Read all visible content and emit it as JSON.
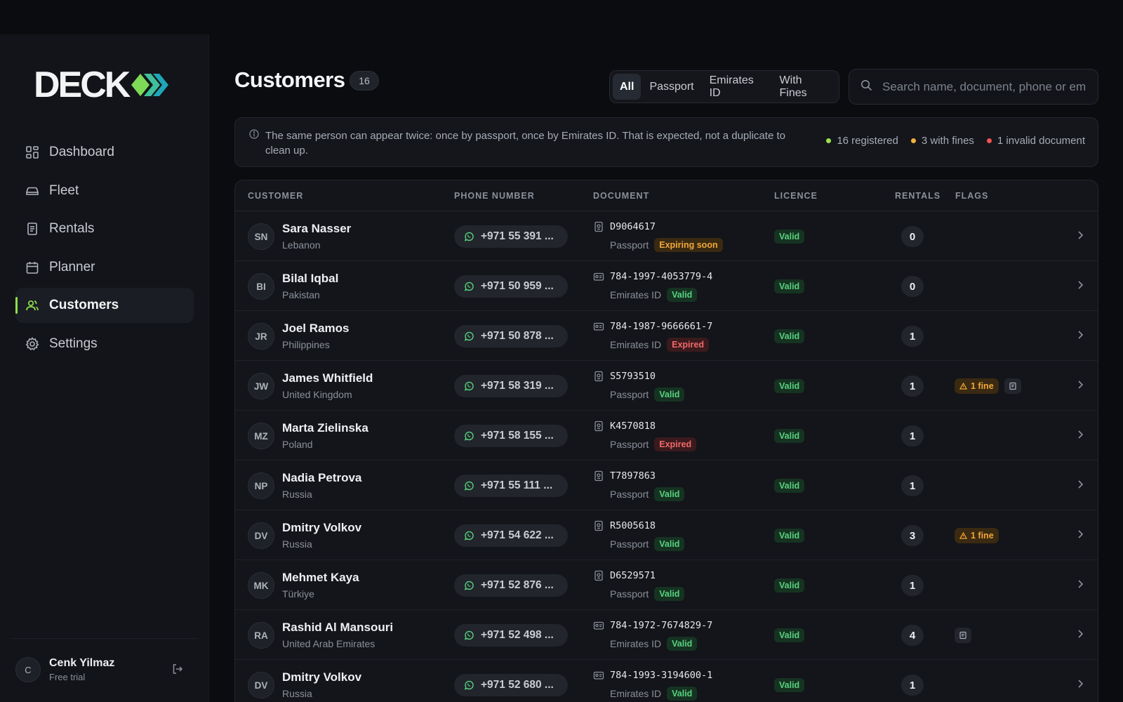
{
  "app": {
    "logo_text": "DECK"
  },
  "nav": {
    "items": [
      {
        "label": "Dashboard",
        "icon": "dashboard-icon",
        "active": false
      },
      {
        "label": "Fleet",
        "icon": "car-icon",
        "active": false
      },
      {
        "label": "Rentals",
        "icon": "receipt-icon",
        "active": false
      },
      {
        "label": "Planner",
        "icon": "calendar-icon",
        "active": false
      },
      {
        "label": "Customers",
        "icon": "users-icon",
        "active": true
      },
      {
        "label": "Settings",
        "icon": "gear-icon",
        "active": false
      }
    ]
  },
  "user": {
    "initial": "C",
    "name": "Cenk Yilmaz",
    "plan": "Free trial"
  },
  "header": {
    "title": "Customers",
    "count": "16",
    "filters": [
      {
        "label": "All",
        "active": true
      },
      {
        "label": "Passport",
        "active": false
      },
      {
        "label": "Emirates ID",
        "active": false
      },
      {
        "label": "With Fines",
        "active": false
      }
    ],
    "search_placeholder": "Search name, document, phone or email"
  },
  "banner": {
    "text": "The same person can appear twice: once by passport, once by Emirates ID. That is expected, not a duplicate to clean up.",
    "stats": [
      {
        "label": "16 registered",
        "color": "#9be24a"
      },
      {
        "label": "3 with fines",
        "color": "#f1b33a"
      },
      {
        "label": "1 invalid document",
        "color": "#ef5350"
      }
    ]
  },
  "colors": {
    "accent": "#8ee04a",
    "valid": "#58d27e",
    "expired": "#f06a6a",
    "warning": "#f1a73a"
  },
  "table": {
    "columns": [
      "CUSTOMER",
      "PHONE NUMBER",
      "DOCUMENT",
      "LICENCE",
      "RENTALS",
      "FLAGS"
    ],
    "rows": [
      {
        "initials": "SN",
        "name": "Sara Nasser",
        "country": "Lebanon",
        "phone": "+971 55 391 ...",
        "doc_kind": "passport",
        "doc_number": "D9064617",
        "doc_type": "Passport",
        "doc_status": "Expiring soon",
        "doc_status_kind": "soon",
        "licence": "Valid",
        "rentals": "0",
        "fine": "",
        "note": false
      },
      {
        "initials": "BI",
        "name": "Bilal Iqbal",
        "country": "Pakistan",
        "phone": "+971 50 959 ...",
        "doc_kind": "id",
        "doc_number": "784-1997-4053779-4",
        "doc_type": "Emirates ID",
        "doc_status": "Valid",
        "doc_status_kind": "valid",
        "licence": "Valid",
        "rentals": "0",
        "fine": "",
        "note": false
      },
      {
        "initials": "JR",
        "name": "Joel Ramos",
        "country": "Philippines",
        "phone": "+971 50 878 ...",
        "doc_kind": "id",
        "doc_number": "784-1987-9666661-7",
        "doc_type": "Emirates ID",
        "doc_status": "Expired",
        "doc_status_kind": "expired",
        "licence": "Valid",
        "rentals": "1",
        "fine": "",
        "note": false
      },
      {
        "initials": "JW",
        "name": "James Whitfield",
        "country": "United Kingdom",
        "phone": "+971 58 319 ...",
        "doc_kind": "passport",
        "doc_number": "S5793510",
        "doc_type": "Passport",
        "doc_status": "Valid",
        "doc_status_kind": "valid",
        "licence": "Valid",
        "rentals": "1",
        "fine": "1 fine",
        "note": true
      },
      {
        "initials": "MZ",
        "name": "Marta Zielinska",
        "country": "Poland",
        "phone": "+971 58 155 ...",
        "doc_kind": "passport",
        "doc_number": "K4570818",
        "doc_type": "Passport",
        "doc_status": "Expired",
        "doc_status_kind": "expired",
        "licence": "Valid",
        "rentals": "1",
        "fine": "",
        "note": false
      },
      {
        "initials": "NP",
        "name": "Nadia Petrova",
        "country": "Russia",
        "phone": "+971 55 111 ...",
        "doc_kind": "passport",
        "doc_number": "T7897863",
        "doc_type": "Passport",
        "doc_status": "Valid",
        "doc_status_kind": "valid",
        "licence": "Valid",
        "rentals": "1",
        "fine": "",
        "note": false
      },
      {
        "initials": "DV",
        "name": "Dmitry Volkov",
        "country": "Russia",
        "phone": "+971 54 622 ...",
        "doc_kind": "passport",
        "doc_number": "R5005618",
        "doc_type": "Passport",
        "doc_status": "Valid",
        "doc_status_kind": "valid",
        "licence": "Valid",
        "rentals": "3",
        "fine": "1 fine",
        "note": false
      },
      {
        "initials": "MK",
        "name": "Mehmet Kaya",
        "country": "Türkiye",
        "phone": "+971 52 876 ...",
        "doc_kind": "passport",
        "doc_number": "D6529571",
        "doc_type": "Passport",
        "doc_status": "Valid",
        "doc_status_kind": "valid",
        "licence": "Valid",
        "rentals": "1",
        "fine": "",
        "note": false
      },
      {
        "initials": "RA",
        "name": "Rashid Al Mansouri",
        "country": "United Arab Emirates",
        "phone": "+971 52 498 ...",
        "doc_kind": "id",
        "doc_number": "784-1972-7674829-7",
        "doc_type": "Emirates ID",
        "doc_status": "Valid",
        "doc_status_kind": "valid",
        "licence": "Valid",
        "rentals": "4",
        "fine": "",
        "note": true
      },
      {
        "initials": "DV",
        "name": "Dmitry Volkov",
        "country": "Russia",
        "phone": "+971 52 680 ...",
        "doc_kind": "id",
        "doc_number": "784-1993-3194600-1",
        "doc_type": "Emirates ID",
        "doc_status": "Valid",
        "doc_status_kind": "valid",
        "licence": "Valid",
        "rentals": "1",
        "fine": "",
        "note": false
      }
    ]
  }
}
